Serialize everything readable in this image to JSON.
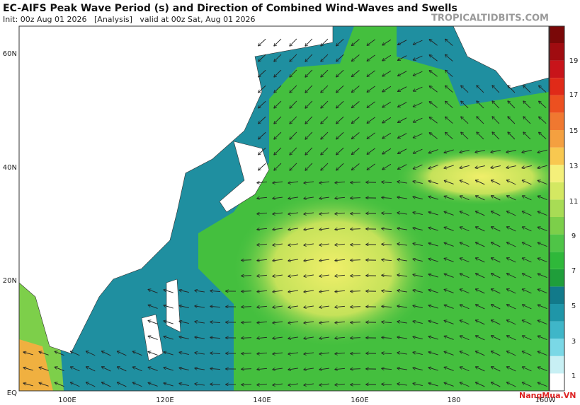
{
  "header": {
    "title": "EC-AIFS Peak Wave Period (s) and Direction of Combined Wind-Waves and Swells",
    "init": "Init: 00z Aug 01 2026   [Analysis]   valid at 00z Sat, Aug 01 2026",
    "brand": "TROPICALTIDBITS.COM"
  },
  "map": {
    "lat_labels": [
      "60N",
      "40N",
      "20N",
      "EQ"
    ],
    "lon_labels": [
      "100E",
      "120E",
      "140E",
      "160E",
      "180",
      "160W"
    ]
  },
  "colorbar": {
    "labels": [
      "19",
      "17",
      "15",
      "13",
      "11",
      "9",
      "7",
      "5",
      "3",
      "1"
    ]
  },
  "watermark": "NangMua.VN"
}
